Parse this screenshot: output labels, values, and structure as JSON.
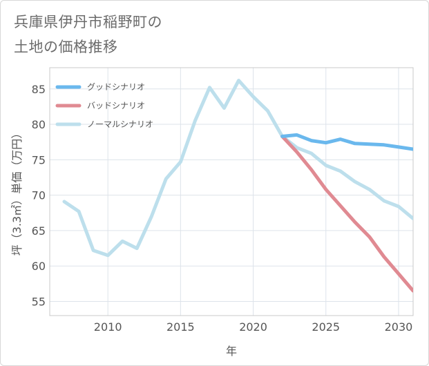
{
  "chart_data": {
    "type": "line",
    "title": "兵庫県伊丹市稲野町の\n土地の価格推移",
    "xlabel": "年",
    "ylabel": "坪（3.3㎡）単価（万円）",
    "xlim": [
      2006,
      2031
    ],
    "ylim": [
      53,
      88
    ],
    "xticks": [
      2010,
      2015,
      2020,
      2025,
      2030
    ],
    "yticks": [
      55,
      60,
      65,
      70,
      75,
      80,
      85
    ],
    "grid": true,
    "legend_position": "top-left",
    "series": [
      {
        "name": "グッドシナリオ",
        "color": "#6ab8ed",
        "x": [
          2022,
          2023,
          2024,
          2025,
          2026,
          2027,
          2028,
          2029,
          2030,
          2031
        ],
        "y": [
          78.3,
          78.5,
          77.7,
          77.4,
          77.9,
          77.3,
          77.2,
          77.1,
          76.8,
          76.5
        ]
      },
      {
        "name": "バッドシナリオ",
        "color": "#e08a92",
        "x": [
          2022,
          2023,
          2024,
          2025,
          2026,
          2027,
          2028,
          2029,
          2030,
          2031
        ],
        "y": [
          78.3,
          76.1,
          73.6,
          70.8,
          68.5,
          66.2,
          64.1,
          61.3,
          58.9,
          56.5
        ]
      },
      {
        "name": "ノーマルシナリオ",
        "color": "#bddfec",
        "x": [
          2007,
          2008,
          2009,
          2010,
          2011,
          2012,
          2013,
          2014,
          2015,
          2016,
          2017,
          2018,
          2019,
          2020,
          2021,
          2022,
          2023,
          2024,
          2025,
          2026,
          2027,
          2028,
          2029,
          2030,
          2031
        ],
        "y": [
          69.1,
          67.7,
          62.2,
          61.5,
          63.5,
          62.5,
          67.0,
          72.3,
          74.7,
          80.5,
          85.2,
          82.3,
          86.2,
          83.9,
          81.9,
          78.3,
          76.7,
          75.9,
          74.2,
          73.4,
          71.9,
          70.8,
          69.2,
          68.4,
          66.7
        ]
      }
    ]
  }
}
